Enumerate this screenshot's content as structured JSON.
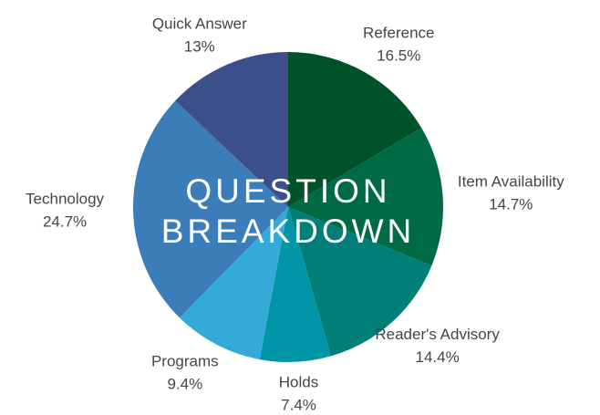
{
  "chart_data": {
    "type": "pie",
    "title": "QUESTION BREAKDOWN",
    "categories": [
      "Reference",
      "Item Availability",
      "Reader's Advisory",
      "Holds",
      "Programs",
      "Technology",
      "Quick Answer"
    ],
    "values": [
      16.5,
      14.7,
      14.4,
      7.4,
      9.4,
      24.7,
      13
    ],
    "value_labels": [
      "16.5%",
      "14.7%",
      "14.4%",
      "7.4%",
      "9.4%",
      "24.7%",
      "13%"
    ],
    "colors": [
      "#00522a",
      "#006a45",
      "#007f78",
      "#0096a8",
      "#35aad8",
      "#3a7db8",
      "#3b4f8a"
    ]
  }
}
